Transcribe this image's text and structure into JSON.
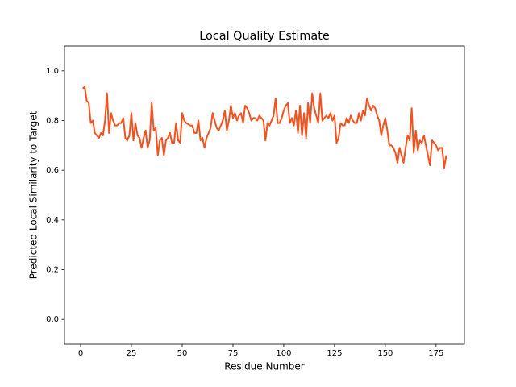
{
  "chart_data": {
    "type": "line",
    "title": "Local Quality Estimate",
    "x_label": "Residue Number",
    "y_label": "Predicted Local Similarity to Target",
    "color": "#f4511e",
    "x": [
      1,
      2,
      3,
      4,
      5,
      6,
      7,
      8,
      9,
      10,
      11,
      12,
      13,
      14,
      15,
      16,
      17,
      18,
      19,
      20,
      21,
      22,
      23,
      24,
      25,
      26,
      27,
      28,
      29,
      30,
      31,
      32,
      33,
      34,
      35,
      36,
      37,
      38,
      39,
      40,
      41,
      42,
      43,
      44,
      45,
      46,
      47,
      48,
      49,
      50,
      51,
      52,
      53,
      54,
      55,
      56,
      57,
      58,
      59,
      60,
      61,
      62,
      63,
      64,
      65,
      66,
      67,
      68,
      69,
      70,
      71,
      72,
      73,
      74,
      75,
      76,
      77,
      78,
      79,
      80,
      81,
      82,
      83,
      84,
      85,
      86,
      87,
      88,
      89,
      90,
      91,
      92,
      93,
      94,
      95,
      96,
      97,
      98,
      99,
      100,
      101,
      102,
      103,
      104,
      105,
      106,
      107,
      108,
      109,
      110,
      111,
      112,
      113,
      114,
      115,
      116,
      117,
      118,
      119,
      120,
      121,
      122,
      123,
      124,
      125,
      126,
      127,
      128,
      129,
      130,
      131,
      132,
      133,
      134,
      135,
      136,
      137,
      138,
      139,
      140,
      141,
      142,
      143,
      144,
      145,
      146,
      147,
      148,
      149,
      150,
      151,
      152,
      153,
      154,
      155,
      156,
      157,
      158,
      159,
      160,
      161,
      162,
      163,
      164,
      165,
      166,
      167,
      168,
      169,
      170,
      171,
      172,
      173,
      174,
      175,
      176,
      177,
      178,
      179,
      180
    ],
    "values": [
      0.93,
      0.935,
      0.88,
      0.87,
      0.79,
      0.8,
      0.75,
      0.74,
      0.73,
      0.75,
      0.74,
      0.8,
      0.91,
      0.75,
      0.83,
      0.8,
      0.78,
      0.78,
      0.79,
      0.79,
      0.81,
      0.73,
      0.72,
      0.74,
      0.83,
      0.72,
      0.79,
      0.74,
      0.73,
      0.69,
      0.73,
      0.76,
      0.69,
      0.72,
      0.87,
      0.76,
      0.77,
      0.66,
      0.72,
      0.73,
      0.66,
      0.72,
      0.73,
      0.75,
      0.71,
      0.71,
      0.79,
      0.72,
      0.71,
      0.83,
      0.8,
      0.79,
      0.785,
      0.78,
      0.78,
      0.75,
      0.75,
      0.8,
      0.72,
      0.73,
      0.69,
      0.73,
      0.75,
      0.77,
      0.83,
      0.8,
      0.77,
      0.76,
      0.78,
      0.8,
      0.84,
      0.76,
      0.8,
      0.86,
      0.81,
      0.83,
      0.8,
      0.82,
      0.83,
      0.79,
      0.86,
      0.85,
      0.83,
      0.8,
      0.81,
      0.81,
      0.8,
      0.82,
      0.81,
      0.8,
      0.72,
      0.79,
      0.78,
      0.8,
      0.82,
      0.89,
      0.79,
      0.79,
      0.81,
      0.84,
      0.86,
      0.87,
      0.79,
      0.81,
      0.78,
      0.84,
      0.75,
      0.86,
      0.74,
      0.83,
      0.73,
      0.87,
      0.79,
      0.91,
      0.85,
      0.82,
      0.79,
      0.91,
      0.8,
      0.81,
      0.82,
      0.81,
      0.83,
      0.8,
      0.82,
      0.71,
      0.73,
      0.79,
      0.78,
      0.78,
      0.81,
      0.79,
      0.82,
      0.8,
      0.79,
      0.79,
      0.83,
      0.8,
      0.84,
      0.82,
      0.89,
      0.86,
      0.84,
      0.86,
      0.85,
      0.82,
      0.8,
      0.74,
      0.78,
      0.81,
      0.76,
      0.7,
      0.7,
      0.69,
      0.67,
      0.63,
      0.69,
      0.66,
      0.63,
      0.69,
      0.74,
      0.72,
      0.85,
      0.67,
      0.76,
      0.68,
      0.72,
      0.71,
      0.74,
      0.7,
      0.66,
      0.62,
      0.72,
      0.71,
      0.7,
      0.68,
      0.69,
      0.69,
      0.61,
      0.66
    ],
    "xlim": [
      -7.95,
      188.95
    ],
    "ylim": [
      -0.1,
      1.1
    ],
    "xticks": [
      0,
      25,
      50,
      75,
      100,
      125,
      150,
      175
    ],
    "yticks": [
      {
        "value": 0,
        "label": "0.0"
      },
      0.2,
      0.4,
      0.6,
      0.8,
      {
        "value": 1,
        "label": "1.0"
      }
    ]
  }
}
